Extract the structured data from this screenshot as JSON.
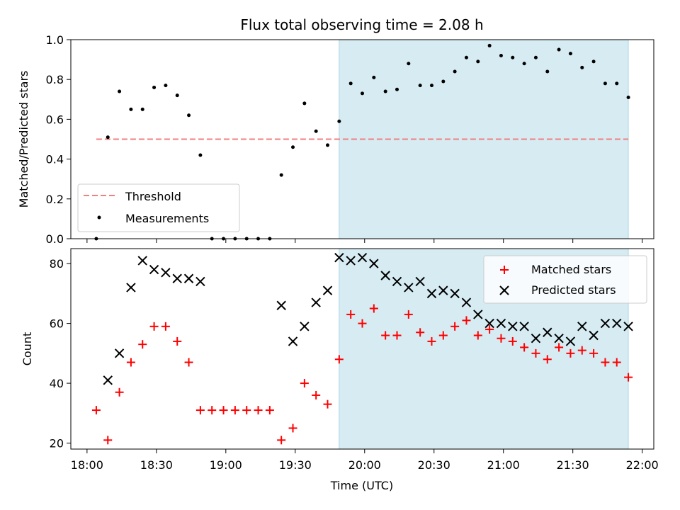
{
  "chart_data": [
    {
      "type": "scatter",
      "title": "Flux total observing time = 2.08 h",
      "xlabel": "",
      "ylabel": "Matched/Predicted stars",
      "ylim": [
        0.0,
        1.0
      ],
      "yticks": [
        "0.0",
        "0.2",
        "0.4",
        "0.6",
        "0.8",
        "1.0"
      ],
      "xlim": [
        "17:53",
        "22:05"
      ],
      "shaded_region": [
        "19:49",
        "21:54"
      ],
      "threshold": {
        "name": "Threshold",
        "y": 0.5,
        "x": [
          "18:04",
          "21:54"
        ],
        "color": "#f08080"
      },
      "legend": {
        "placement": "lower-left",
        "entries": [
          "Threshold",
          "Measurements"
        ]
      },
      "series": [
        {
          "name": "Measurements",
          "color": "#000000",
          "x": [
            "18:04",
            "18:09",
            "18:14",
            "18:19",
            "18:24",
            "18:29",
            "18:34",
            "18:39",
            "18:44",
            "18:49",
            "18:54",
            "18:59",
            "19:04",
            "19:09",
            "19:14",
            "19:19",
            "19:24",
            "19:29",
            "19:34",
            "19:39",
            "19:44",
            "19:49",
            "19:54",
            "19:59",
            "20:04",
            "20:09",
            "20:14",
            "20:19",
            "20:24",
            "20:29",
            "20:34",
            "20:39",
            "20:44",
            "20:49",
            "20:54",
            "20:59",
            "21:04",
            "21:09",
            "21:14",
            "21:19",
            "21:24",
            "21:29",
            "21:34",
            "21:39",
            "21:44",
            "21:49",
            "21:54"
          ],
          "y": [
            0.0,
            0.51,
            0.74,
            0.65,
            0.65,
            0.76,
            0.77,
            0.72,
            0.62,
            0.42,
            0.0,
            0.0,
            0.0,
            0.0,
            0.0,
            0.0,
            0.32,
            0.46,
            0.68,
            0.54,
            0.47,
            0.59,
            0.78,
            0.73,
            0.81,
            0.74,
            0.75,
            0.88,
            0.77,
            0.77,
            0.79,
            0.84,
            0.91,
            0.89,
            0.97,
            0.92,
            0.91,
            0.88,
            0.91,
            0.84,
            0.95,
            0.93,
            0.86,
            0.89,
            0.78,
            0.78,
            0.71
          ]
        }
      ]
    },
    {
      "type": "scatter",
      "title": "",
      "xlabel": "Time (UTC)",
      "ylabel": "Count",
      "ylim": [
        18,
        85
      ],
      "yticks": [
        "20",
        "40",
        "60",
        "80"
      ],
      "xlim": [
        "17:53",
        "22:05"
      ],
      "xticks": [
        "18:00",
        "18:30",
        "19:00",
        "19:30",
        "20:00",
        "20:30",
        "21:00",
        "21:30",
        "22:00"
      ],
      "shaded_region": [
        "19:49",
        "21:54"
      ],
      "legend": {
        "placement": "upper-right",
        "entries": [
          "Matched stars",
          "Predicted stars"
        ]
      },
      "series": [
        {
          "name": "Matched stars",
          "color": "#ff0000",
          "marker": "plus",
          "x": [
            "18:04",
            "18:09",
            "18:14",
            "18:19",
            "18:24",
            "18:29",
            "18:34",
            "18:39",
            "18:44",
            "18:49",
            "18:54",
            "18:59",
            "19:04",
            "19:09",
            "19:14",
            "19:19",
            "19:24",
            "19:29",
            "19:34",
            "19:39",
            "19:44",
            "19:49",
            "19:54",
            "19:59",
            "20:04",
            "20:09",
            "20:14",
            "20:19",
            "20:24",
            "20:29",
            "20:34",
            "20:39",
            "20:44",
            "20:49",
            "20:54",
            "20:59",
            "21:04",
            "21:09",
            "21:14",
            "21:19",
            "21:24",
            "21:29",
            "21:34",
            "21:39",
            "21:44",
            "21:49",
            "21:54"
          ],
          "y": [
            31,
            21,
            37,
            47,
            53,
            59,
            59,
            54,
            47,
            31,
            31,
            31,
            31,
            31,
            31,
            31,
            21,
            25,
            40,
            36,
            33,
            48,
            63,
            60,
            65,
            56,
            56,
            63,
            57,
            54,
            56,
            59,
            61,
            56,
            58,
            55,
            54,
            52,
            50,
            48,
            52,
            50,
            51,
            50,
            47,
            47,
            42
          ]
        },
        {
          "name": "Predicted stars",
          "color": "#000000",
          "marker": "x",
          "x": [
            "18:09",
            "18:14",
            "18:19",
            "18:24",
            "18:29",
            "18:34",
            "18:39",
            "18:44",
            "18:49",
            "19:24",
            "19:29",
            "19:34",
            "19:39",
            "19:44",
            "19:49",
            "19:54",
            "19:59",
            "20:04",
            "20:09",
            "20:14",
            "20:19",
            "20:24",
            "20:29",
            "20:34",
            "20:39",
            "20:44",
            "20:49",
            "20:54",
            "20:59",
            "21:04",
            "21:09",
            "21:14",
            "21:19",
            "21:24",
            "21:29",
            "21:34",
            "21:39",
            "21:44",
            "21:49",
            "21:54"
          ],
          "y": [
            41,
            50,
            72,
            81,
            78,
            77,
            75,
            75,
            74,
            66,
            54,
            59,
            67,
            71,
            82,
            81,
            82,
            80,
            76,
            74,
            72,
            74,
            70,
            71,
            70,
            67,
            63,
            60,
            60,
            59,
            59,
            55,
            57,
            55,
            54,
            59,
            56,
            60,
            60,
            59
          ]
        }
      ]
    }
  ]
}
